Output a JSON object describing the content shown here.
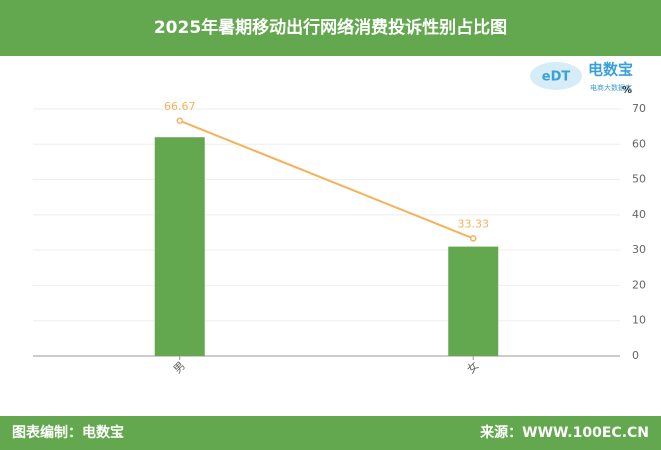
{
  "header": {
    "title": "2025年暑期移动出行网络消费投诉性别占比图"
  },
  "logo": {
    "name": "电数宝",
    "tagline": "电商大数据库",
    "mark": "eDT"
  },
  "footer": {
    "left": "图表编制：电数宝",
    "right": "来源：WWW.100EC.CN"
  },
  "chart_data": {
    "type": "bar",
    "categories": [
      "男",
      "女"
    ],
    "series": [
      {
        "type": "bar",
        "color": "#63a84f",
        "values": [
          62,
          31
        ]
      },
      {
        "type": "line",
        "color": "#f5b15b",
        "values": [
          66.67,
          33.33
        ],
        "data_labels": true
      }
    ],
    "y_unit": "%",
    "ylim": [
      0,
      70
    ],
    "yticks": [
      0,
      10,
      20,
      30,
      40,
      50,
      60,
      70
    ],
    "grid": true
  }
}
